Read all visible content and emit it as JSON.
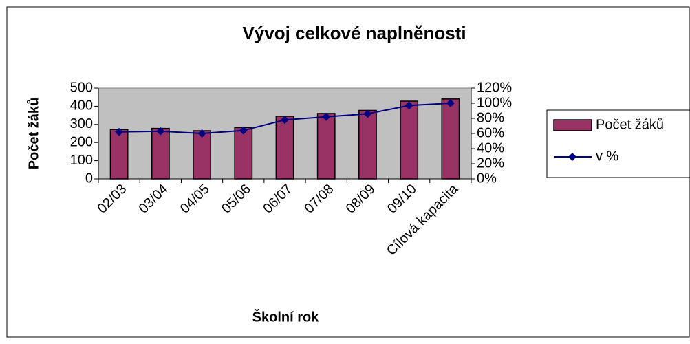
{
  "chart_data": {
    "type": "bar-line",
    "title": "Vývoj celkové naplněnosti",
    "xlabel": "Školní rok",
    "ylabel": "Počet žáků",
    "categories": [
      "02/03",
      "03/04",
      "04/05",
      "05/06",
      "06/07",
      "07/08",
      "08/09",
      "09/10",
      "Cílová kapacita"
    ],
    "series": [
      {
        "name": "Počet žáků",
        "type": "bar",
        "color": "#993366",
        "values": [
          272,
          278,
          265,
          283,
          345,
          360,
          377,
          428,
          440
        ]
      },
      {
        "name": "v %",
        "type": "line",
        "axis": "y2",
        "color": "#000080",
        "values": [
          62,
          63,
          60,
          64,
          78,
          82,
          86,
          97,
          100
        ]
      }
    ],
    "ylim": [
      0,
      500
    ],
    "yticks": [
      0,
      100,
      200,
      300,
      400,
      500
    ],
    "y2lim": [
      0,
      120
    ],
    "y2ticks": [
      {
        "value": 0,
        "label": "0%"
      },
      {
        "value": 20,
        "label": "20%"
      },
      {
        "value": 40,
        "label": "40%"
      },
      {
        "value": 60,
        "label": "60%"
      },
      {
        "value": 80,
        "label": "80%"
      },
      {
        "value": 100,
        "label": "100%"
      },
      {
        "value": 120,
        "label": "120%"
      }
    ],
    "plot_background": "#c0c0c0"
  }
}
